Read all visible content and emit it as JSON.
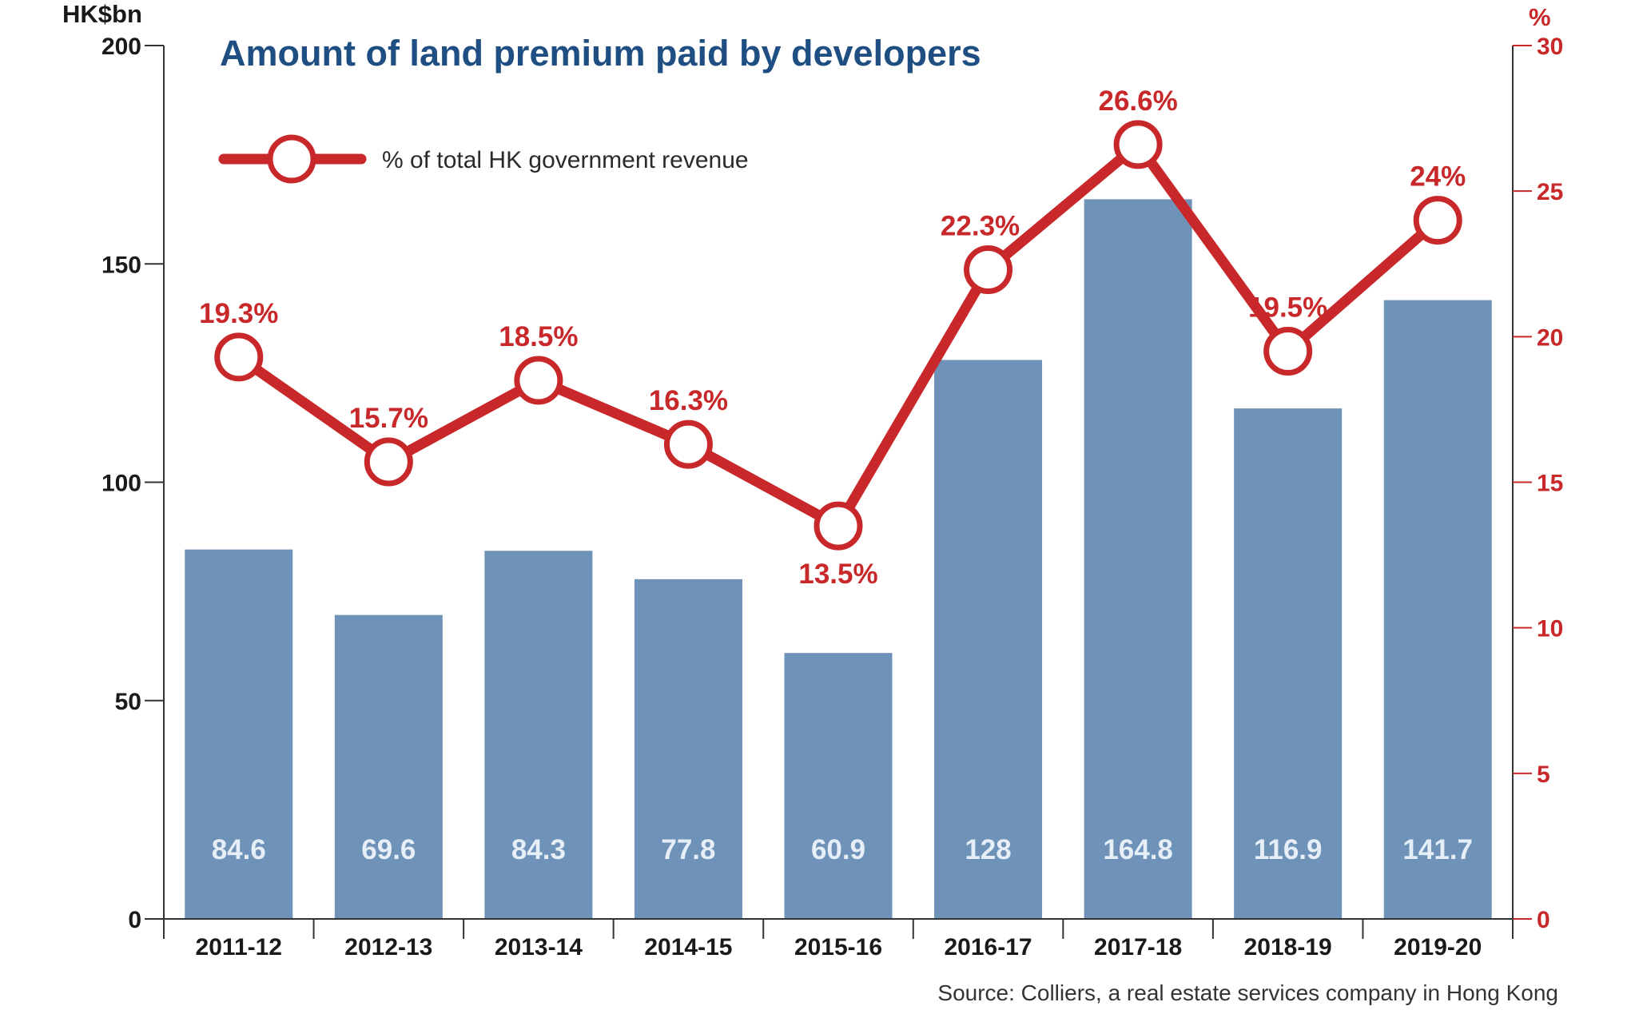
{
  "chart_data": {
    "type": "bar",
    "title": "Amount of land premium paid by developers",
    "categories": [
      "2011-12",
      "2012-13",
      "2013-14",
      "2014-15",
      "2015-16",
      "2016-17",
      "2017-18",
      "2018-19",
      "2019-20"
    ],
    "series": [
      {
        "name": "",
        "type": "bar",
        "axis": "left",
        "values": [
          84.6,
          69.6,
          84.3,
          77.8,
          60.9,
          128,
          164.8,
          116.9,
          141.7
        ],
        "labels": [
          "84.6",
          "69.6",
          "84.3",
          "77.8",
          "60.9",
          "128",
          "164.8",
          "116.9",
          "141.7"
        ]
      },
      {
        "name": "% of total HK government revenue",
        "type": "line",
        "axis": "right",
        "values": [
          19.3,
          15.7,
          18.5,
          16.3,
          13.5,
          22.3,
          26.6,
          19.5,
          24
        ],
        "labels": [
          "19.3%",
          "15.7%",
          "18.5%",
          "16.3%",
          "13.5%",
          "22.3%",
          "26.6%",
          "19.5%",
          "24%"
        ]
      }
    ],
    "y_left": {
      "unit": "HK$bn",
      "range": [
        0,
        200
      ],
      "ticks": [
        "0",
        "50",
        "100",
        "150",
        "200"
      ]
    },
    "y_right": {
      "unit": "%",
      "range": [
        0,
        30
      ],
      "ticks": [
        "0",
        "5",
        "10",
        "15",
        "20",
        "25",
        "30"
      ]
    },
    "legend": {
      "position": "top-left",
      "label": "% of total HK government revenue"
    },
    "grid": false,
    "source": "Source: Colliers, a real estate services company in Hong Kong"
  },
  "colors": {
    "bar": "#6f93b8",
    "line": "#c8282a",
    "title": "#1f4e82",
    "axis": "#333333"
  }
}
